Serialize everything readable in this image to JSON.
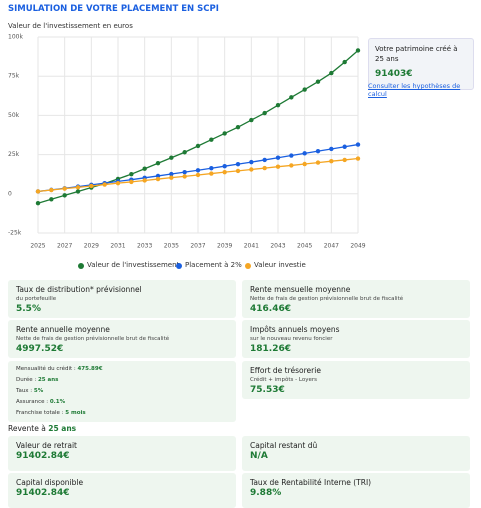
{
  "header": {
    "title": "SIMULATION DE VOTRE PLACEMENT EN SCPI",
    "subtitle": "Valeur de l'investissement en euros"
  },
  "chart_data": {
    "type": "line",
    "x": [
      2025,
      2026,
      2027,
      2028,
      2029,
      2030,
      2031,
      2032,
      2033,
      2034,
      2035,
      2036,
      2037,
      2038,
      2039,
      2040,
      2041,
      2042,
      2043,
      2044,
      2045,
      2046,
      2047,
      2048,
      2049
    ],
    "xlim": [
      2025,
      2049
    ],
    "xticks": [
      2025,
      2027,
      2029,
      2031,
      2033,
      2035,
      2037,
      2039,
      2041,
      2043,
      2045,
      2047,
      2049
    ],
    "ylim": [
      -25000,
      100000
    ],
    "yticks": [
      {
        "value": -25000,
        "label": "-25k"
      },
      0,
      {
        "value": 25000,
        "label": "25k"
      },
      {
        "value": 50000,
        "label": "50k"
      },
      {
        "value": 75000,
        "label": "75k"
      },
      {
        "value": 100000,
        "label": "100k"
      }
    ],
    "grid": true,
    "series": [
      {
        "name": "Valeur de l'investissement",
        "color": "#1e7a35",
        "values": [
          -6000,
          -3500,
          -1000,
          1500,
          4000,
          6500,
          9500,
          12500,
          16000,
          19500,
          23000,
          26500,
          30500,
          34500,
          38500,
          42500,
          47000,
          51500,
          56500,
          61500,
          66500,
          71500,
          77000,
          84000,
          91403
        ]
      },
      {
        "name": "Placement à 2%",
        "color": "#1a5fe0",
        "values": [
          1500,
          2500,
          3500,
          4600,
          5700,
          6800,
          7900,
          9000,
          10200,
          11400,
          12600,
          13800,
          15000,
          16300,
          17600,
          18900,
          20200,
          21600,
          23000,
          24400,
          25800,
          27200,
          28600,
          30000,
          31400
        ]
      },
      {
        "name": "Valeur investie",
        "color": "#f5a623",
        "values": [
          1500,
          2400,
          3300,
          4100,
          5000,
          5900,
          6800,
          7600,
          8500,
          9400,
          10300,
          11100,
          12000,
          12900,
          13800,
          14600,
          15500,
          16400,
          17300,
          18100,
          19000,
          19900,
          20800,
          21600,
          22500
        ]
      }
    ]
  },
  "summary": {
    "label": "Votre patrimoine créé à 25 ans",
    "value": "91403€",
    "link": "Consulter les hypothèses de calcul"
  },
  "cards": [
    {
      "title": "Taux de distribution* prévisionnel",
      "note": "du portefeuille",
      "value": "5.5%"
    },
    {
      "title": "Rente mensuelle moyenne",
      "note": "Nette de frais de gestion prévisionnelle brut de fiscalité",
      "value": "416.46€"
    },
    {
      "title": "Rente annuelle moyenne",
      "note": "Nette de frais de gestion prévisionnelle brut de fiscalité",
      "value": "4997.52€"
    },
    {
      "title": "Impôts annuels moyens",
      "note": "sur le nouveau revenu foncier",
      "value": "181.26€"
    },
    {
      "title": "Effort de trésorerie",
      "note": "Crédit + impôts - Loyers",
      "value": "75.53€"
    }
  ],
  "credit": [
    [
      "Mensualité du crédit :",
      "475.89€"
    ],
    [
      "Durée :",
      "25 ans"
    ],
    [
      "Taux :",
      "5%"
    ],
    [
      "Assurance :",
      "0.1%"
    ],
    [
      "Franchise totale :",
      "5 mois"
    ]
  ],
  "resale": {
    "label": "Revente à",
    "value": "25 ans",
    "cards": [
      {
        "title": "Valeur de retrait",
        "value": "91402.84€"
      },
      {
        "title": "Capital restant dû",
        "value": "N/A"
      },
      {
        "title": "Capital disponible",
        "value": "91402.84€"
      },
      {
        "title": "Taux de Rentabilité Interne (TRI)",
        "value": "9.88%"
      }
    ]
  }
}
